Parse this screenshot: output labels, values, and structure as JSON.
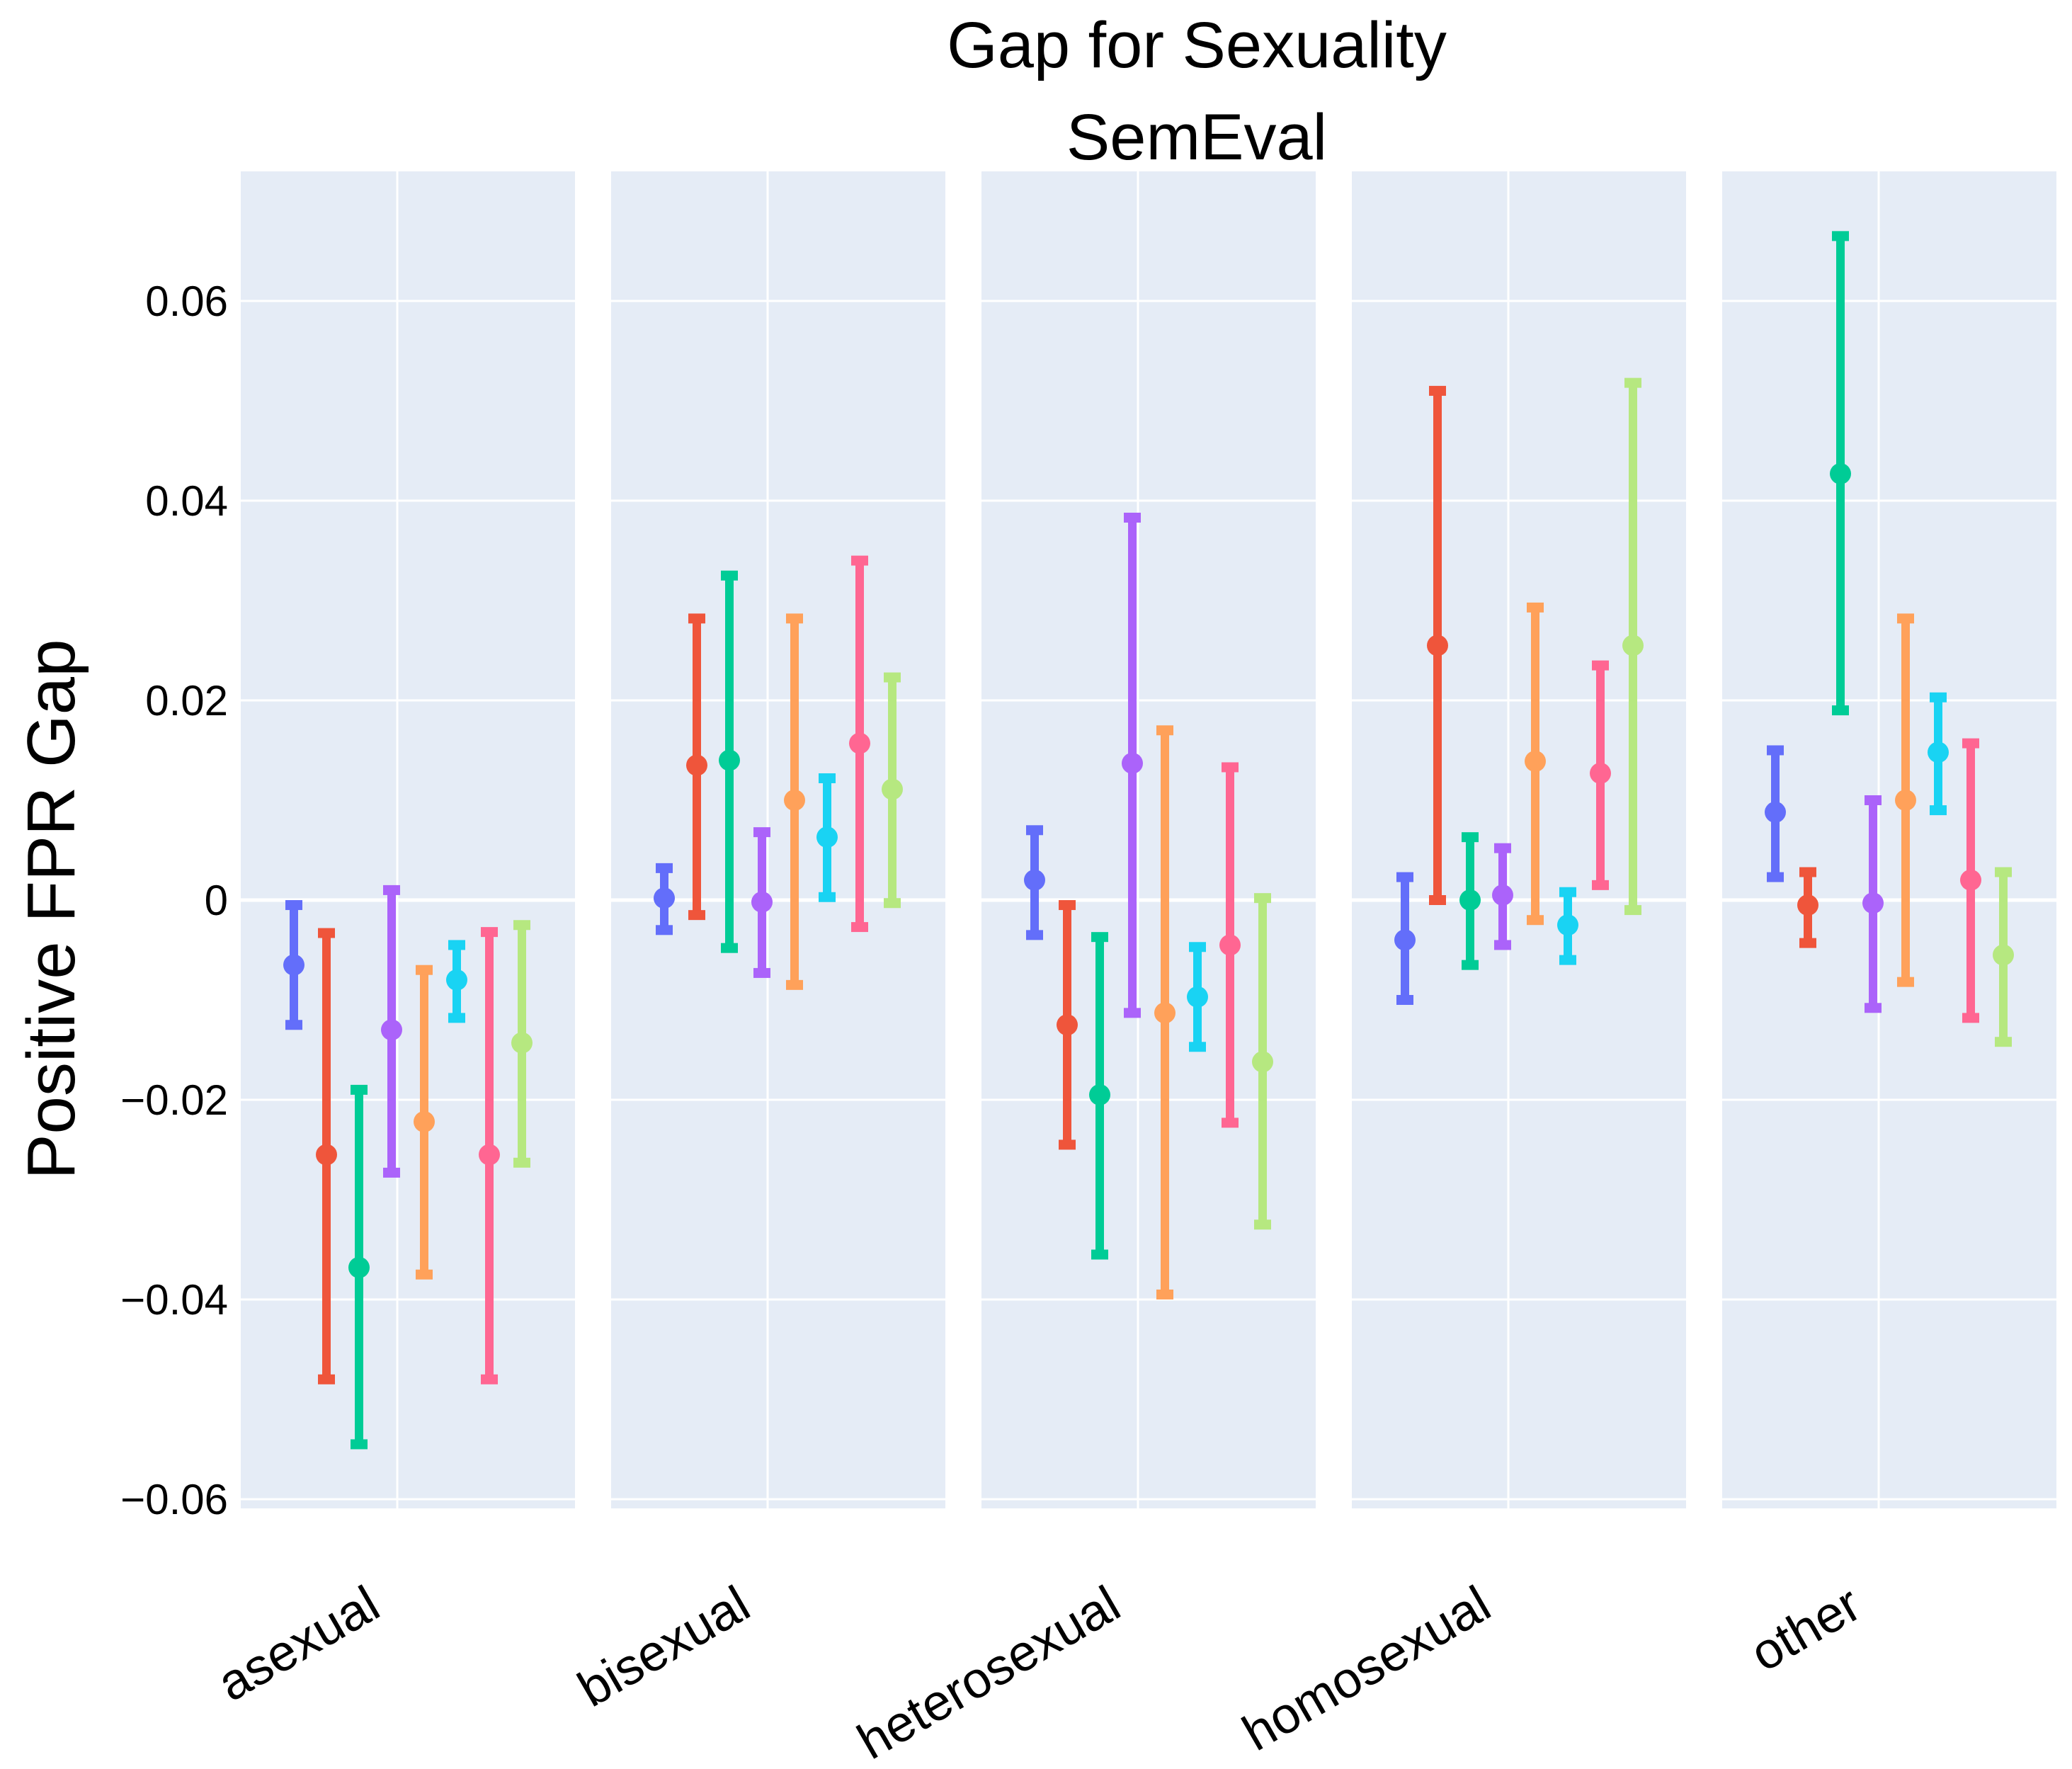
{
  "chart_data": {
    "type": "scatter",
    "title": "Gap for Sexuality",
    "subtitle": "SemEval",
    "ylabel": "Positive FPR Gap",
    "xlabel": "",
    "ylim": [
      -0.061,
      0.073
    ],
    "yticks": [
      0.06,
      0.04,
      0.02,
      0,
      -0.02,
      -0.04,
      -0.06
    ],
    "ytick_labels": [
      "0.06",
      "0.04",
      "0.02",
      "0",
      "−0.02",
      "−0.04",
      "−0.06"
    ],
    "grid": true,
    "legend": "none",
    "categories": [
      "asexual",
      "bisexual",
      "heterosexual",
      "homosexual",
      "other"
    ],
    "colors": [
      "#636efa",
      "#ef553b",
      "#00cc96",
      "#ab63fa",
      "#ffa15a",
      "#19d3f3",
      "#ff6692",
      "#b6e880"
    ],
    "series": [
      {
        "values": [
          -0.0065,
          0.0002,
          0.002,
          -0.004,
          0.0088
        ],
        "err_low": [
          -0.0125,
          -0.003,
          -0.0035,
          -0.01,
          0.0023
        ],
        "err_high": [
          -0.0005,
          0.0032,
          0.007,
          0.0023,
          0.015
        ]
      },
      {
        "values": [
          -0.0255,
          0.0135,
          -0.0125,
          0.0255,
          -0.0005
        ],
        "err_low": [
          -0.048,
          -0.0015,
          -0.0245,
          0.0,
          -0.0043
        ],
        "err_high": [
          -0.0033,
          0.0282,
          -0.0005,
          0.051,
          0.0028
        ]
      },
      {
        "values": [
          -0.0368,
          0.014,
          -0.0195,
          0.0,
          0.0427
        ],
        "err_low": [
          -0.0545,
          -0.0048,
          -0.0355,
          -0.0065,
          0.019
        ],
        "err_high": [
          -0.019,
          0.0325,
          -0.0037,
          0.0063,
          0.0665
        ]
      },
      {
        "values": [
          -0.013,
          -0.0002,
          0.0137,
          0.0005,
          -0.0003
        ],
        "err_low": [
          -0.0273,
          -0.0073,
          -0.0113,
          -0.0045,
          -0.0108
        ],
        "err_high": [
          0.001,
          0.0068,
          0.0383,
          0.0052,
          0.01
        ]
      },
      {
        "values": [
          -0.0222,
          0.01,
          -0.0113,
          0.0139,
          0.01
        ],
        "err_low": [
          -0.0375,
          -0.0085,
          -0.0395,
          -0.002,
          -0.0082
        ],
        "err_high": [
          -0.007,
          0.0282,
          0.017,
          0.0293,
          0.0282
        ]
      },
      {
        "values": [
          -0.008,
          0.0063,
          -0.0097,
          -0.0025,
          0.0148
        ],
        "err_low": [
          -0.0118,
          0.0003,
          -0.0147,
          -0.006,
          0.009
        ],
        "err_high": [
          -0.0045,
          0.0122,
          -0.0047,
          0.0008,
          0.0203
        ]
      },
      {
        "values": [
          -0.0255,
          0.0157,
          -0.0045,
          0.0127,
          0.002
        ],
        "err_low": [
          -0.048,
          -0.0027,
          -0.0223,
          0.0015,
          -0.0118
        ],
        "err_high": [
          -0.0032,
          0.034,
          0.0133,
          0.0235,
          0.0157
        ]
      },
      {
        "values": [
          -0.0143,
          0.0111,
          -0.0162,
          0.0255,
          -0.0055
        ],
        "err_low": [
          -0.0263,
          -0.0003,
          -0.0325,
          -0.001,
          -0.0142
        ],
        "err_high": [
          -0.0025,
          0.0223,
          0.0002,
          0.0518,
          0.0028
        ]
      }
    ]
  }
}
